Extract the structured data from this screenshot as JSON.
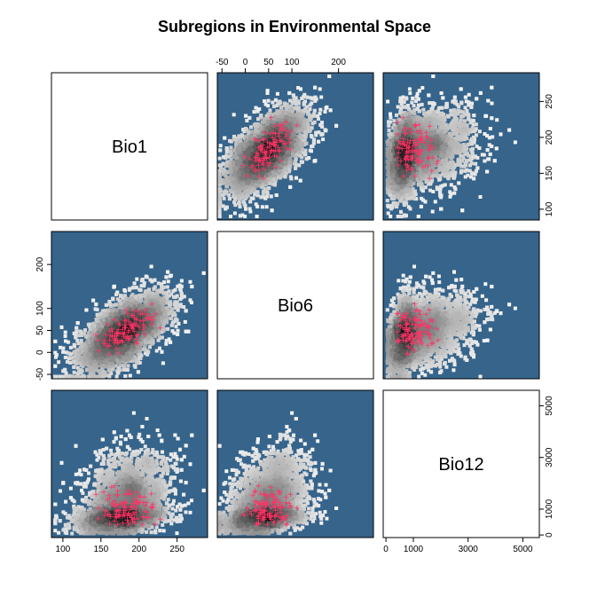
{
  "chart_data": {
    "type": "scatter",
    "title": "Subregions in Environmental Space",
    "variables": [
      "Bio1",
      "Bio6",
      "Bio12"
    ],
    "ranges": {
      "Bio1": [
        85,
        290
      ],
      "Bio6": [
        -60,
        275
      ],
      "Bio12": [
        -100,
        5600
      ]
    },
    "ticks": {
      "Bio1": [
        100,
        150,
        200,
        250
      ],
      "Bio6": [
        -50,
        0,
        50,
        100,
        200
      ],
      "Bio12": [
        0,
        1000,
        3000,
        5000
      ]
    },
    "background_points": {
      "n": 4200,
      "center": {
        "Bio1": 180,
        "Bio6": 45,
        "Bio12": 900
      },
      "sd": {
        "Bio1": 30,
        "Bio6": 45,
        "Bio12": 700
      },
      "corr": {
        "Bio1_Bio6": 0.62,
        "Bio1_Bio12": 0.3,
        "Bio6_Bio12": 0.35
      }
    },
    "sample_points": {
      "n": 110,
      "center": {
        "Bio1": 185,
        "Bio6": 55,
        "Bio12": 1050
      },
      "sd": {
        "Bio1": 18,
        "Bio6": 22,
        "Bio12": 380
      }
    },
    "colors": {
      "panel_background": "#36648b",
      "density_high": "#111111",
      "density_low": "#ffffff",
      "sample_points": "#ff3366"
    },
    "grid": false,
    "legend": "none"
  }
}
